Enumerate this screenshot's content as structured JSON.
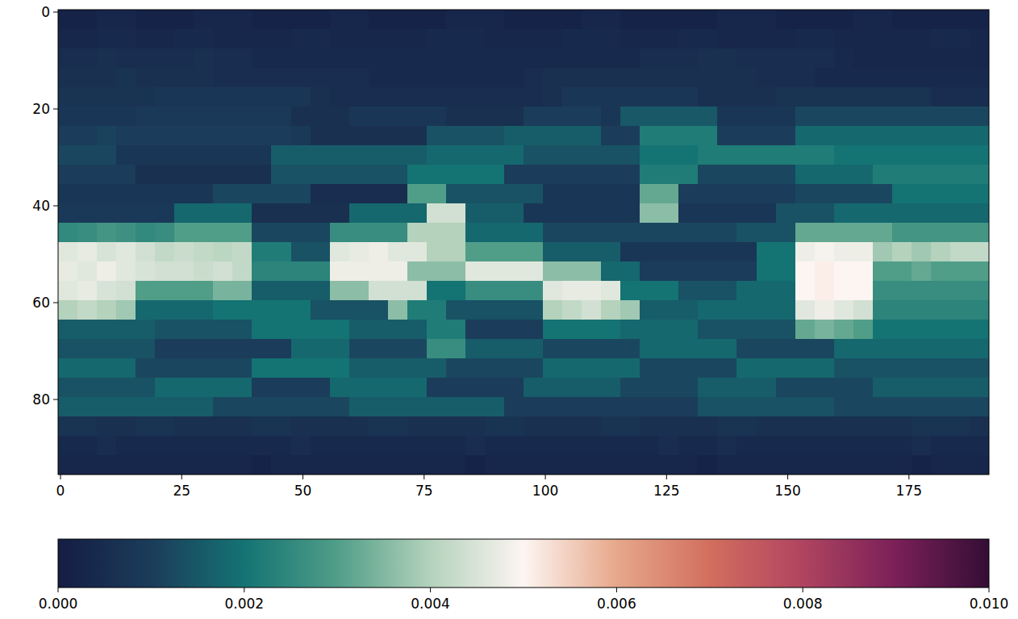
{
  "chart_data": {
    "type": "heatmap",
    "xlim": [
      -0.5,
      191.5
    ],
    "ylim": [
      95.5,
      -0.5
    ],
    "xticks": [
      0,
      25,
      50,
      75,
      100,
      125,
      150,
      175
    ],
    "yticks": [
      0,
      20,
      40,
      60,
      80
    ],
    "color_range": [
      0,
      0.01
    ],
    "color_ticks": [
      {
        "value": 0,
        "label": "0.000"
      },
      {
        "value": 0.002,
        "label": "0.002"
      },
      {
        "value": 0.004,
        "label": "0.004"
      },
      {
        "value": 0.006,
        "label": "0.006"
      },
      {
        "value": 0.008,
        "label": "0.008"
      },
      {
        "value": 0.01,
        "label": "0.010"
      }
    ],
    "cells": [
      [
        0.0002,
        0.0002,
        0.0003,
        0.0003,
        0.0002,
        0.0002,
        0.0002,
        0.0003,
        0.0003,
        0.0003,
        0.0002,
        0.0002,
        0.0002,
        0.0002,
        0.0003,
        0.0003,
        0.0002,
        0.0002,
        0.0002,
        0.0002,
        0.0003,
        0.0003,
        0.0003,
        0.0002,
        0.0002,
        0.0002,
        0.0002,
        0.0003,
        0.0003,
        0.0002,
        0.0002,
        0.0002,
        0.0002,
        0.0002,
        0.0003,
        0.0003,
        0.0003,
        0.0002,
        0.0002,
        0.0002,
        0.0002,
        0.0003,
        0.0003,
        0.0002,
        0.0002,
        0.0002,
        0.0002,
        0.0002
      ],
      [
        0.0003,
        0.0003,
        0.0004,
        0.0004,
        0.0003,
        0.0003,
        0.0004,
        0.0004,
        0.0003,
        0.0003,
        0.0003,
        0.0003,
        0.0004,
        0.0004,
        0.0003,
        0.0003,
        0.0003,
        0.0003,
        0.0003,
        0.0004,
        0.0004,
        0.0004,
        0.0003,
        0.0003,
        0.0003,
        0.0003,
        0.0004,
        0.0004,
        0.0004,
        0.0003,
        0.0003,
        0.0003,
        0.0004,
        0.0004,
        0.0003,
        0.0003,
        0.0003,
        0.0003,
        0.0004,
        0.0004,
        0.0003,
        0.0003,
        0.0003,
        0.0003,
        0.0003,
        0.0004,
        0.0004,
        0.0003
      ],
      [
        0.0005,
        0.0005,
        0.0006,
        0.0005,
        0.0005,
        0.0005,
        0.0005,
        0.0006,
        0.0005,
        0.0005,
        0.0004,
        0.0004,
        0.0004,
        0.0004,
        0.0004,
        0.0004,
        0.0004,
        0.0004,
        0.0004,
        0.0004,
        0.0004,
        0.0004,
        0.0004,
        0.0004,
        0.0004,
        0.0004,
        0.0004,
        0.0004,
        0.0004,
        0.0004,
        0.0005,
        0.0005,
        0.0005,
        0.0006,
        0.0006,
        0.0005,
        0.0005,
        0.0005,
        0.0005,
        0.0005,
        0.0004,
        0.0003,
        0.0003,
        0.0003,
        0.0003,
        0.0003,
        0.0003,
        0.0003
      ],
      [
        0.0006,
        0.0006,
        0.0006,
        0.0007,
        0.0006,
        0.0006,
        0.0006,
        0.0006,
        0.0005,
        0.0005,
        0.0005,
        0.0005,
        0.0005,
        0.0005,
        0.0005,
        0.0005,
        0.0004,
        0.0004,
        0.0004,
        0.0004,
        0.0004,
        0.0004,
        0.0004,
        0.0004,
        0.0005,
        0.0006,
        0.0006,
        0.0006,
        0.0006,
        0.0006,
        0.0006,
        0.0006,
        0.0006,
        0.0006,
        0.0006,
        0.0006,
        0.0005,
        0.0005,
        0.0005,
        0.0004,
        0.0004,
        0.0004,
        0.0004,
        0.0004,
        0.0004,
        0.0004,
        0.0004,
        0.0004
      ],
      [
        0.0007,
        0.0007,
        0.0007,
        0.0007,
        0.0007,
        0.0008,
        0.0008,
        0.0008,
        0.0008,
        0.0008,
        0.0008,
        0.0008,
        0.0008,
        0.0006,
        0.0005,
        0.0005,
        0.0005,
        0.0005,
        0.0005,
        0.0005,
        0.0005,
        0.0005,
        0.0005,
        0.0005,
        0.0005,
        0.0006,
        0.0008,
        0.0008,
        0.0008,
        0.0008,
        0.0008,
        0.0008,
        0.0008,
        0.0006,
        0.0006,
        0.0006,
        0.0006,
        0.0007,
        0.0007,
        0.0007,
        0.0007,
        0.0007,
        0.0007,
        0.0007,
        0.0007,
        0.0005,
        0.0005,
        0.0005
      ],
      [
        0.0008,
        0.0008,
        0.0008,
        0.0008,
        0.0009,
        0.0009,
        0.0009,
        0.0009,
        0.0009,
        0.0009,
        0.0009,
        0.0009,
        0.0006,
        0.0006,
        0.0006,
        0.0008,
        0.0008,
        0.0008,
        0.0008,
        0.0008,
        0.0006,
        0.0006,
        0.0006,
        0.0006,
        0.001,
        0.001,
        0.001,
        0.001,
        0.0008,
        0.0015,
        0.0015,
        0.0015,
        0.0015,
        0.0015,
        0.0008,
        0.0008,
        0.0008,
        0.0008,
        0.0012,
        0.0012,
        0.0012,
        0.0012,
        0.0012,
        0.0012,
        0.0012,
        0.0012,
        0.0012,
        0.0012
      ],
      [
        0.001,
        0.001,
        0.0011,
        0.001,
        0.001,
        0.001,
        0.001,
        0.001,
        0.001,
        0.001,
        0.001,
        0.001,
        0.0009,
        0.0006,
        0.0006,
        0.0006,
        0.0006,
        0.0006,
        0.0006,
        0.0014,
        0.0014,
        0.0014,
        0.0014,
        0.0016,
        0.0016,
        0.0016,
        0.0016,
        0.0016,
        0.001,
        0.001,
        0.0022,
        0.0022,
        0.0022,
        0.0022,
        0.001,
        0.001,
        0.001,
        0.001,
        0.0018,
        0.0018,
        0.0018,
        0.0018,
        0.0018,
        0.0018,
        0.0018,
        0.0018,
        0.0018,
        0.0018
      ],
      [
        0.0012,
        0.0012,
        0.0012,
        0.0008,
        0.0008,
        0.0008,
        0.0008,
        0.0008,
        0.0008,
        0.0008,
        0.0008,
        0.0016,
        0.0016,
        0.0016,
        0.0016,
        0.0016,
        0.0016,
        0.0016,
        0.0016,
        0.0018,
        0.0018,
        0.0018,
        0.0018,
        0.0018,
        0.0014,
        0.0014,
        0.0014,
        0.0014,
        0.0014,
        0.0014,
        0.002,
        0.002,
        0.002,
        0.0022,
        0.0022,
        0.0022,
        0.0022,
        0.0022,
        0.0022,
        0.0022,
        0.002,
        0.002,
        0.002,
        0.002,
        0.002,
        0.002,
        0.002,
        0.002
      ],
      [
        0.001,
        0.001,
        0.001,
        0.001,
        0.0006,
        0.0006,
        0.0006,
        0.0006,
        0.0006,
        0.0006,
        0.0006,
        0.0014,
        0.0014,
        0.0014,
        0.0014,
        0.0014,
        0.0014,
        0.0014,
        0.002,
        0.002,
        0.002,
        0.002,
        0.002,
        0.001,
        0.001,
        0.001,
        0.001,
        0.001,
        0.001,
        0.001,
        0.0022,
        0.0022,
        0.0022,
        0.0012,
        0.0012,
        0.0012,
        0.0012,
        0.0012,
        0.0018,
        0.0018,
        0.0018,
        0.0018,
        0.0022,
        0.0022,
        0.0022,
        0.0022,
        0.0022,
        0.0022
      ],
      [
        0.0008,
        0.0008,
        0.0008,
        0.0008,
        0.0008,
        0.0008,
        0.0008,
        0.0008,
        0.0012,
        0.0012,
        0.0012,
        0.0012,
        0.0012,
        0.0005,
        0.0005,
        0.0005,
        0.0005,
        0.0005,
        0.003,
        0.003,
        0.0014,
        0.0014,
        0.0014,
        0.0014,
        0.0014,
        0.0008,
        0.0008,
        0.0008,
        0.0008,
        0.0008,
        0.0032,
        0.0032,
        0.001,
        0.001,
        0.001,
        0.001,
        0.001,
        0.001,
        0.0012,
        0.0012,
        0.0012,
        0.0012,
        0.0012,
        0.002,
        0.002,
        0.002,
        0.002,
        0.002
      ],
      [
        0.0009,
        0.0009,
        0.0009,
        0.0009,
        0.0009,
        0.0009,
        0.0018,
        0.0018,
        0.0018,
        0.0018,
        0.0006,
        0.0006,
        0.0006,
        0.0006,
        0.0006,
        0.0018,
        0.0018,
        0.0018,
        0.0018,
        0.0044,
        0.0044,
        0.0016,
        0.0016,
        0.0016,
        0.0008,
        0.0008,
        0.0008,
        0.0008,
        0.0008,
        0.0008,
        0.0036,
        0.0036,
        0.0008,
        0.0008,
        0.0008,
        0.0008,
        0.0008,
        0.0014,
        0.0014,
        0.0014,
        0.0018,
        0.0018,
        0.0018,
        0.0018,
        0.0018,
        0.0018,
        0.0018,
        0.0018
      ],
      [
        0.0025,
        0.0026,
        0.0028,
        0.0027,
        0.0025,
        0.0026,
        0.003,
        0.003,
        0.003,
        0.003,
        0.0012,
        0.0012,
        0.0012,
        0.0012,
        0.0026,
        0.0026,
        0.0026,
        0.0026,
        0.004,
        0.004,
        0.004,
        0.0018,
        0.0018,
        0.0018,
        0.0018,
        0.0012,
        0.0012,
        0.0012,
        0.0012,
        0.0012,
        0.0012,
        0.0012,
        0.0012,
        0.0012,
        0.0012,
        0.0014,
        0.0014,
        0.0014,
        0.0032,
        0.0032,
        0.0032,
        0.0032,
        0.0032,
        0.0028,
        0.0028,
        0.0028,
        0.0028,
        0.0028
      ],
      [
        0.0046,
        0.0047,
        0.0045,
        0.0046,
        0.0044,
        0.0042,
        0.0043,
        0.0042,
        0.0041,
        0.0042,
        0.0022,
        0.0022,
        0.0014,
        0.0014,
        0.0046,
        0.0047,
        0.0048,
        0.0046,
        0.0046,
        0.004,
        0.004,
        0.003,
        0.003,
        0.003,
        0.003,
        0.0016,
        0.0016,
        0.0016,
        0.0016,
        0.0008,
        0.0008,
        0.0008,
        0.0008,
        0.0008,
        0.0008,
        0.0008,
        0.002,
        0.002,
        0.0048,
        0.0049,
        0.0048,
        0.0048,
        0.0038,
        0.004,
        0.0038,
        0.004,
        0.0042,
        0.0042
      ],
      [
        0.0047,
        0.0046,
        0.0048,
        0.0046,
        0.0045,
        0.0044,
        0.0044,
        0.0043,
        0.0044,
        0.0042,
        0.0024,
        0.0024,
        0.0024,
        0.0024,
        0.0048,
        0.0048,
        0.0048,
        0.0048,
        0.0036,
        0.0036,
        0.0036,
        0.0046,
        0.0046,
        0.0046,
        0.0046,
        0.0036,
        0.0036,
        0.0036,
        0.0018,
        0.0018,
        0.001,
        0.001,
        0.001,
        0.001,
        0.001,
        0.001,
        0.002,
        0.002,
        0.005,
        0.0051,
        0.005,
        0.005,
        0.003,
        0.003,
        0.0032,
        0.003,
        0.003,
        0.003
      ],
      [
        0.0046,
        0.0047,
        0.0045,
        0.0044,
        0.003,
        0.003,
        0.003,
        0.003,
        0.0034,
        0.0034,
        0.0016,
        0.0016,
        0.0016,
        0.0016,
        0.0036,
        0.0036,
        0.0044,
        0.0044,
        0.0044,
        0.002,
        0.002,
        0.0026,
        0.0026,
        0.0026,
        0.0026,
        0.0046,
        0.0047,
        0.0047,
        0.0046,
        0.002,
        0.002,
        0.002,
        0.0014,
        0.0014,
        0.0014,
        0.0018,
        0.0018,
        0.0018,
        0.005,
        0.0051,
        0.005,
        0.005,
        0.0026,
        0.0026,
        0.0026,
        0.0026,
        0.0026,
        0.0026
      ],
      [
        0.004,
        0.0042,
        0.004,
        0.0038,
        0.0018,
        0.0018,
        0.0018,
        0.0018,
        0.002,
        0.002,
        0.002,
        0.002,
        0.002,
        0.0014,
        0.0014,
        0.0014,
        0.0014,
        0.0036,
        0.0022,
        0.0022,
        0.0014,
        0.0014,
        0.0014,
        0.0014,
        0.0014,
        0.004,
        0.0042,
        0.0044,
        0.004,
        0.0038,
        0.0016,
        0.0016,
        0.0016,
        0.0018,
        0.0018,
        0.0018,
        0.0018,
        0.0018,
        0.0046,
        0.0048,
        0.0046,
        0.0044,
        0.0024,
        0.0024,
        0.0024,
        0.0024,
        0.0024,
        0.0024
      ],
      [
        0.0016,
        0.0016,
        0.0016,
        0.0016,
        0.0016,
        0.0014,
        0.0014,
        0.0014,
        0.0014,
        0.0014,
        0.002,
        0.002,
        0.002,
        0.002,
        0.002,
        0.0016,
        0.0016,
        0.0016,
        0.0016,
        0.0022,
        0.0022,
        0.001,
        0.001,
        0.001,
        0.001,
        0.002,
        0.002,
        0.002,
        0.002,
        0.0018,
        0.0018,
        0.0018,
        0.0018,
        0.0014,
        0.0014,
        0.0014,
        0.0014,
        0.0014,
        0.0032,
        0.0034,
        0.0032,
        0.003,
        0.002,
        0.002,
        0.002,
        0.002,
        0.002,
        0.002
      ],
      [
        0.0014,
        0.0014,
        0.0014,
        0.0014,
        0.0014,
        0.001,
        0.001,
        0.001,
        0.001,
        0.001,
        0.001,
        0.001,
        0.0018,
        0.0018,
        0.0018,
        0.0012,
        0.0012,
        0.0012,
        0.0012,
        0.0026,
        0.0026,
        0.0016,
        0.0016,
        0.0016,
        0.0016,
        0.0012,
        0.0012,
        0.0012,
        0.0012,
        0.0012,
        0.0018,
        0.0018,
        0.0018,
        0.0018,
        0.0018,
        0.0012,
        0.0012,
        0.0012,
        0.0012,
        0.0012,
        0.0018,
        0.0018,
        0.0018,
        0.0018,
        0.0018,
        0.0018,
        0.0018,
        0.0018
      ],
      [
        0.0018,
        0.0018,
        0.0018,
        0.0018,
        0.0012,
        0.0012,
        0.0012,
        0.0012,
        0.0012,
        0.0012,
        0.002,
        0.002,
        0.002,
        0.002,
        0.002,
        0.0016,
        0.0016,
        0.0016,
        0.0016,
        0.0016,
        0.0012,
        0.0012,
        0.0012,
        0.0012,
        0.0012,
        0.0018,
        0.0018,
        0.0018,
        0.0018,
        0.0018,
        0.0012,
        0.0012,
        0.0012,
        0.0012,
        0.0012,
        0.0018,
        0.0018,
        0.0018,
        0.0018,
        0.0018,
        0.0014,
        0.0014,
        0.0014,
        0.0014,
        0.0014,
        0.0014,
        0.0014,
        0.0014
      ],
      [
        0.0014,
        0.0014,
        0.0014,
        0.0014,
        0.0014,
        0.0018,
        0.0018,
        0.0018,
        0.0018,
        0.0018,
        0.001,
        0.001,
        0.001,
        0.001,
        0.0018,
        0.0018,
        0.0018,
        0.0018,
        0.0018,
        0.001,
        0.001,
        0.001,
        0.001,
        0.001,
        0.0016,
        0.0016,
        0.0016,
        0.0016,
        0.0016,
        0.0012,
        0.0012,
        0.0012,
        0.0012,
        0.0016,
        0.0016,
        0.0016,
        0.0016,
        0.0012,
        0.0012,
        0.0012,
        0.0012,
        0.0012,
        0.0016,
        0.0016,
        0.0016,
        0.0016,
        0.0016,
        0.0016
      ],
      [
        0.0016,
        0.0016,
        0.0016,
        0.0016,
        0.0016,
        0.0016,
        0.0016,
        0.0016,
        0.0012,
        0.0012,
        0.0012,
        0.0012,
        0.0012,
        0.0012,
        0.0012,
        0.0016,
        0.0016,
        0.0016,
        0.0016,
        0.0016,
        0.0016,
        0.0016,
        0.0016,
        0.001,
        0.001,
        0.001,
        0.001,
        0.001,
        0.001,
        0.001,
        0.001,
        0.001,
        0.001,
        0.0014,
        0.0014,
        0.0014,
        0.0014,
        0.0014,
        0.0014,
        0.0014,
        0.0012,
        0.0012,
        0.0012,
        0.0012,
        0.0012,
        0.0012,
        0.0012,
        0.0012
      ],
      [
        0.0007,
        0.0007,
        0.0006,
        0.0006,
        0.0007,
        0.0007,
        0.0006,
        0.0006,
        0.0006,
        0.0006,
        0.0007,
        0.0007,
        0.0006,
        0.0006,
        0.0006,
        0.0006,
        0.0007,
        0.0007,
        0.0006,
        0.0006,
        0.0006,
        0.0006,
        0.0007,
        0.0007,
        0.0006,
        0.0006,
        0.0006,
        0.0006,
        0.0007,
        0.0007,
        0.0006,
        0.0006,
        0.0006,
        0.0006,
        0.0007,
        0.0007,
        0.0006,
        0.0006,
        0.0006,
        0.0006,
        0.0006,
        0.0006,
        0.0006,
        0.0006,
        0.0007,
        0.0007,
        0.0007,
        0.0006
      ],
      [
        0.0004,
        0.0004,
        0.0005,
        0.0004,
        0.0004,
        0.0004,
        0.0004,
        0.0004,
        0.0004,
        0.0004,
        0.0004,
        0.0004,
        0.0005,
        0.0004,
        0.0004,
        0.0004,
        0.0004,
        0.0004,
        0.0004,
        0.0004,
        0.0004,
        0.0005,
        0.0004,
        0.0004,
        0.0004,
        0.0004,
        0.0004,
        0.0004,
        0.0004,
        0.0004,
        0.0004,
        0.0005,
        0.0004,
        0.0004,
        0.0005,
        0.0004,
        0.0004,
        0.0004,
        0.0004,
        0.0004,
        0.0004,
        0.0004,
        0.0004,
        0.0004,
        0.0005,
        0.0004,
        0.0004,
        0.0004
      ],
      [
        0.0003,
        0.0003,
        0.0003,
        0.0003,
        0.0003,
        0.0003,
        0.0003,
        0.0003,
        0.0003,
        0.0003,
        0.0002,
        0.0003,
        0.0003,
        0.0003,
        0.0003,
        0.0003,
        0.0003,
        0.0003,
        0.0003,
        0.0003,
        0.0003,
        0.0002,
        0.0003,
        0.0003,
        0.0003,
        0.0003,
        0.0003,
        0.0003,
        0.0003,
        0.0003,
        0.0003,
        0.0003,
        0.0003,
        0.0002,
        0.0003,
        0.0003,
        0.0003,
        0.0003,
        0.0003,
        0.0003,
        0.0003,
        0.0003,
        0.0003,
        0.0003,
        0.0002,
        0.0003,
        0.0003,
        0.0003
      ]
    ]
  }
}
